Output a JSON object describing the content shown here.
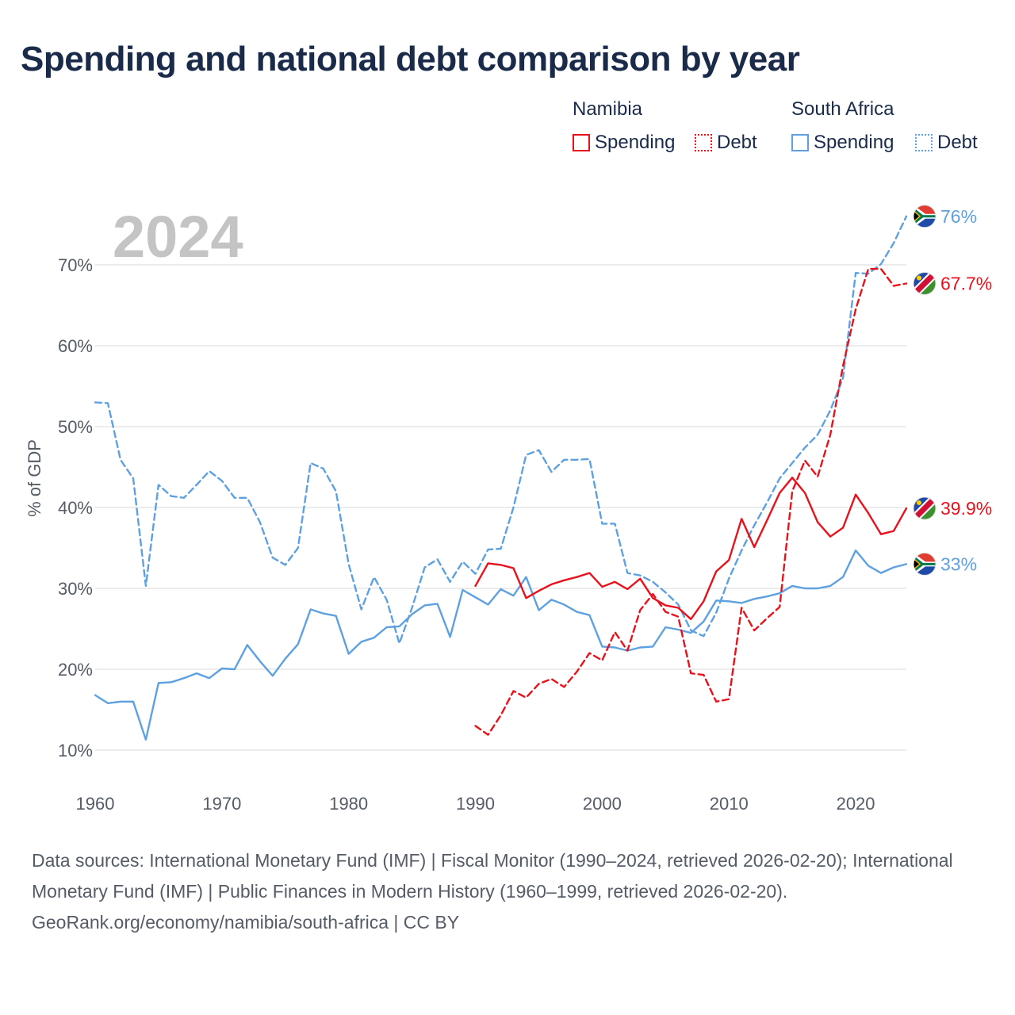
{
  "title": "Spending and national debt comparison by year",
  "legend": {
    "groups": [
      {
        "name": "Namibia",
        "items": [
          {
            "label": "Spending",
            "style": "solid",
            "color": "#e8121c"
          },
          {
            "label": "Debt",
            "style": "dotted",
            "color": "#e8121c"
          }
        ]
      },
      {
        "name": "South Africa",
        "items": [
          {
            "label": "Spending",
            "style": "solid",
            "color": "#5ea1e0"
          },
          {
            "label": "Debt",
            "style": "dotted",
            "color": "#5ea1e0"
          }
        ]
      }
    ]
  },
  "footer": {
    "sources": "Data sources: International Monetary Fund (IMF) | Fiscal Monitor (1990–2024, retrieved 2026-02-20); International Monetary Fund (IMF) | Public Finances in Modern History (1960–1999, retrieved 2026-02-20).",
    "credit": "GeoRank.org/economy/namibia/south-africa | CC BY"
  },
  "chart_data": {
    "type": "line",
    "title": "Spending and national debt comparison by year",
    "current_year_label": "2024",
    "ylabel": "% of GDP",
    "xlabel": "",
    "xlim": [
      1960,
      2024
    ],
    "ylim": [
      10,
      76
    ],
    "x_ticks": [
      "1960",
      "1970",
      "1980",
      "1990",
      "2000",
      "2010",
      "2020"
    ],
    "x_tick_values": [
      1960,
      1970,
      1980,
      1990,
      2000,
      2010,
      2020
    ],
    "y_ticks": [
      "10%",
      "20%",
      "30%",
      "40%",
      "50%",
      "60%",
      "70%"
    ],
    "y_tick_values": [
      10,
      20,
      30,
      40,
      50,
      60,
      70
    ],
    "grid": true,
    "series": [
      {
        "name": "South Africa Debt",
        "country": "South Africa",
        "metric": "Debt",
        "color": "#5ea1e0",
        "dashed": true,
        "end_label": "76%",
        "flag": "south-africa",
        "start_year": 1960,
        "values": [
          53.0,
          52.9,
          45.9,
          43.6,
          30.3,
          42.8,
          41.4,
          41.2,
          42.8,
          44.5,
          43.3,
          41.2,
          41.2,
          38.2,
          33.8,
          32.9,
          35.0,
          45.5,
          44.8,
          42.0,
          33.0,
          27.4,
          31.4,
          28.6,
          23.2,
          27.6,
          32.6,
          33.6,
          30.8,
          33.3,
          31.8,
          34.8,
          34.9,
          40.0,
          46.5,
          47.1,
          44.4,
          45.9,
          45.9,
          46.0,
          38.0,
          38.0,
          31.9,
          31.6,
          30.8,
          29.5,
          28.0,
          24.8,
          24.1,
          27.0,
          31.2,
          34.7,
          37.8,
          40.6,
          43.6,
          45.5,
          47.4,
          49.0,
          52.0,
          56.0,
          69.0,
          68.9,
          70.1,
          72.7,
          76.0
        ]
      },
      {
        "name": "South Africa Spending",
        "country": "South Africa",
        "metric": "Spending",
        "color": "#5ea1e0",
        "dashed": false,
        "end_label": "33%",
        "flag": "south-africa",
        "start_year": 1960,
        "values": [
          16.8,
          15.8,
          16.0,
          16.0,
          11.3,
          18.3,
          18.4,
          18.9,
          19.5,
          18.9,
          20.1,
          20.0,
          23.0,
          21.0,
          19.2,
          21.3,
          23.1,
          27.4,
          26.9,
          26.6,
          21.9,
          23.4,
          23.9,
          25.2,
          25.3,
          26.8,
          27.9,
          28.1,
          24.0,
          29.8,
          28.9,
          28.0,
          29.9,
          29.1,
          31.4,
          27.3,
          28.6,
          28.0,
          27.1,
          26.7,
          22.8,
          22.7,
          22.3,
          22.7,
          22.8,
          25.2,
          24.9,
          24.5,
          25.9,
          28.5,
          28.4,
          28.2,
          28.7,
          29.0,
          29.4,
          30.3,
          30.0,
          30.0,
          30.3,
          31.4,
          34.7,
          32.8,
          31.9,
          32.6,
          33.0
        ]
      },
      {
        "name": "Namibia Debt",
        "country": "Namibia",
        "metric": "Debt",
        "color": "#e8121c",
        "dashed": true,
        "end_label": "67.7%",
        "flag": "namibia",
        "start_year": 1990,
        "values": [
          13.0,
          11.9,
          14.3,
          17.3,
          16.5,
          18.2,
          18.8,
          17.8,
          19.7,
          22.0,
          21.1,
          24.6,
          22.3,
          27.3,
          29.3,
          27.1,
          26.5,
          19.5,
          19.3,
          16.0,
          16.3,
          27.6,
          24.8,
          26.3,
          27.7,
          42.0,
          45.8,
          43.8,
          49.0,
          57.5,
          64.5,
          69.5,
          69.5,
          67.4,
          67.7
        ]
      },
      {
        "name": "Namibia Spending",
        "country": "Namibia",
        "metric": "Spending",
        "color": "#e8121c",
        "dashed": false,
        "end_label": "39.9%",
        "flag": "namibia",
        "start_year": 1990,
        "values": [
          30.3,
          33.1,
          32.9,
          32.5,
          28.8,
          29.7,
          30.5,
          31.0,
          31.4,
          31.9,
          30.2,
          30.8,
          29.9,
          31.2,
          28.8,
          27.9,
          27.6,
          26.2,
          28.4,
          32.1,
          33.5,
          38.6,
          35.1,
          38.4,
          41.8,
          43.7,
          41.8,
          38.2,
          36.4,
          37.5,
          41.6,
          39.3,
          36.7,
          37.1,
          39.9
        ]
      }
    ]
  }
}
